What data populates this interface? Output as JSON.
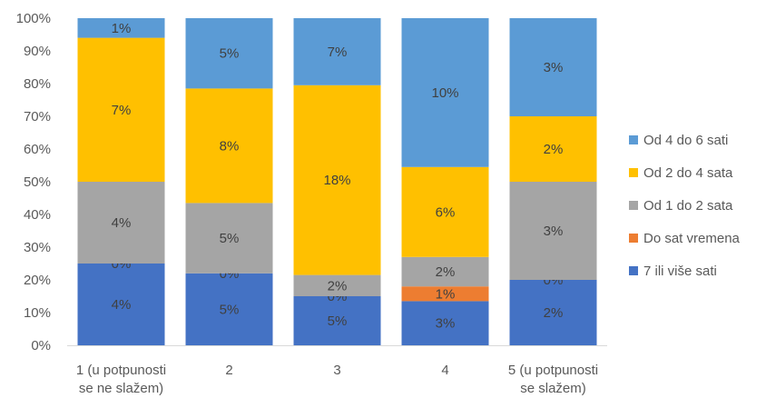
{
  "chart_data": {
    "type": "bar",
    "stacked": true,
    "percent_stacked": true,
    "categories": [
      [
        "1 (u potpunosti",
        "se ne slažem)"
      ],
      [
        "2"
      ],
      [
        "3"
      ],
      [
        "4"
      ],
      [
        "5 (u potpunosti",
        "se slažem)"
      ]
    ],
    "series": [
      {
        "name": "7 ili više sati",
        "color": "#4472C4",
        "shares": [
          0.25,
          0.22,
          0.15,
          0.135,
          0.2
        ],
        "labels": [
          "4%",
          "5%",
          "5%",
          "3%",
          "2%"
        ]
      },
      {
        "name": "Do sat vremena",
        "color": "#ED7D31",
        "shares": [
          0.0,
          0.0,
          0.0,
          0.045,
          0.0
        ],
        "labels": [
          "0%",
          "0%",
          "0%",
          "1%",
          "0%"
        ]
      },
      {
        "name": "Od 1 do 2 sata",
        "color": "#A5A5A5",
        "shares": [
          0.25,
          0.215,
          0.065,
          0.09,
          0.3
        ],
        "labels": [
          "4%",
          "5%",
          "2%",
          "2%",
          "3%"
        ]
      },
      {
        "name": "Od 2 do 4 sata",
        "color": "#FFC000",
        "shares": [
          0.44,
          0.35,
          0.58,
          0.275,
          0.2
        ],
        "labels": [
          "7%",
          "8%",
          "18%",
          "6%",
          "2%"
        ]
      },
      {
        "name": "Od 4 do 6 sati",
        "color": "#5B9BD5",
        "shares": [
          0.06,
          0.215,
          0.205,
          0.455,
          0.3
        ],
        "labels": [
          "1%",
          "5%",
          "7%",
          "10%",
          "3%"
        ]
      }
    ],
    "legend_order": [
      "Od 4 do 6 sati",
      "Od 2 do 4 sata",
      "Od 1 do 2 sata",
      "Do sat vremena",
      "7 ili više sati"
    ],
    "y_ticks": [
      "0%",
      "10%",
      "20%",
      "30%",
      "40%",
      "50%",
      "60%",
      "70%",
      "80%",
      "90%",
      "100%"
    ],
    "ylim": [
      0,
      1
    ],
    "grid": false,
    "legend_position": "right",
    "title": "",
    "xlabel": "",
    "ylabel": ""
  }
}
